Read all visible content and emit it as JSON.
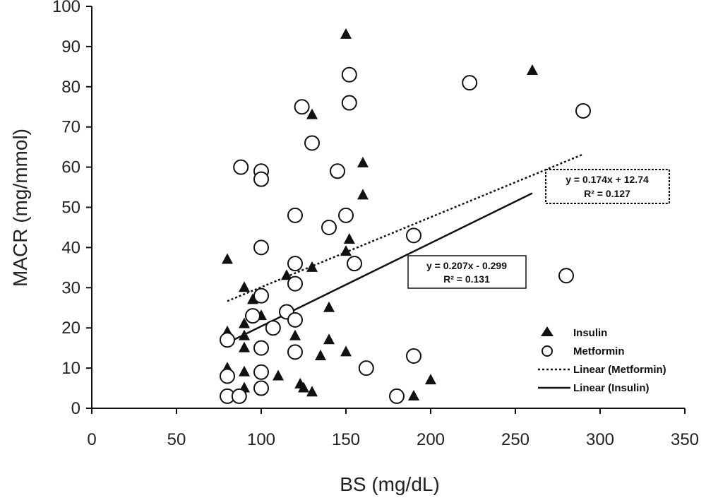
{
  "chart_data": {
    "type": "scatter",
    "title": "",
    "xlabel": "BS (mg/dL)",
    "ylabel": "MACR (mg/mmol)",
    "xlim": [
      0,
      350
    ],
    "ylim": [
      0,
      100
    ],
    "xticks": [
      0,
      50,
      100,
      150,
      200,
      250,
      300,
      350
    ],
    "yticks": [
      0,
      10,
      20,
      30,
      40,
      50,
      60,
      70,
      80,
      90,
      100
    ],
    "grid": false,
    "legend_position": "bottom-right",
    "series": [
      {
        "name": "Insulin",
        "marker": "filled-triangle",
        "points": [
          [
            150,
            93
          ],
          [
            260,
            84
          ],
          [
            130,
            73
          ],
          [
            160,
            61
          ],
          [
            160,
            53
          ],
          [
            152,
            42
          ],
          [
            150,
            39
          ],
          [
            80,
            37
          ],
          [
            130,
            35
          ],
          [
            115,
            33
          ],
          [
            90,
            30
          ],
          [
            95,
            27
          ],
          [
            140,
            25
          ],
          [
            100,
            23
          ],
          [
            90,
            21
          ],
          [
            80,
            19
          ],
          [
            90,
            18
          ],
          [
            120,
            18
          ],
          [
            140,
            17
          ],
          [
            90,
            15
          ],
          [
            135,
            13
          ],
          [
            150,
            14
          ],
          [
            80,
            10
          ],
          [
            90,
            9
          ],
          [
            110,
            8
          ],
          [
            200,
            7
          ],
          [
            123,
            6
          ],
          [
            125,
            5
          ],
          [
            130,
            4
          ],
          [
            90,
            5
          ],
          [
            190,
            3
          ]
        ]
      },
      {
        "name": "Metformin",
        "marker": "open-circle",
        "points": [
          [
            152,
            83
          ],
          [
            223,
            81
          ],
          [
            152,
            76
          ],
          [
            290,
            74
          ],
          [
            124,
            75
          ],
          [
            130,
            66
          ],
          [
            88,
            60
          ],
          [
            145,
            59
          ],
          [
            100,
            59
          ],
          [
            100,
            57
          ],
          [
            120,
            48
          ],
          [
            150,
            48
          ],
          [
            140,
            45
          ],
          [
            190,
            43
          ],
          [
            100,
            40
          ],
          [
            120,
            36
          ],
          [
            155,
            36
          ],
          [
            280,
            33
          ],
          [
            120,
            31
          ],
          [
            100,
            28
          ],
          [
            115,
            24
          ],
          [
            95,
            23
          ],
          [
            120,
            22
          ],
          [
            107,
            20
          ],
          [
            80,
            17
          ],
          [
            100,
            15
          ],
          [
            120,
            14
          ],
          [
            190,
            13
          ],
          [
            162,
            10
          ],
          [
            100,
            9
          ],
          [
            80,
            8
          ],
          [
            100,
            5
          ],
          [
            80,
            3
          ],
          [
            87,
            3
          ],
          [
            180,
            3
          ]
        ]
      },
      {
        "name": "Linear (Metformin)",
        "style": "dotted",
        "slope": 0.174,
        "intercept": 12.74,
        "x_range": [
          80,
          290
        ],
        "equation": "y = 0.174x + 12.74",
        "r2": "R² = 0.127"
      },
      {
        "name": "Linear (Insulin)",
        "style": "solid",
        "slope": 0.207,
        "intercept": -0.299,
        "x_range": [
          80,
          260
        ],
        "equation": "y = 0.207x - 0.299",
        "r2": "R² = 0.131"
      }
    ]
  }
}
